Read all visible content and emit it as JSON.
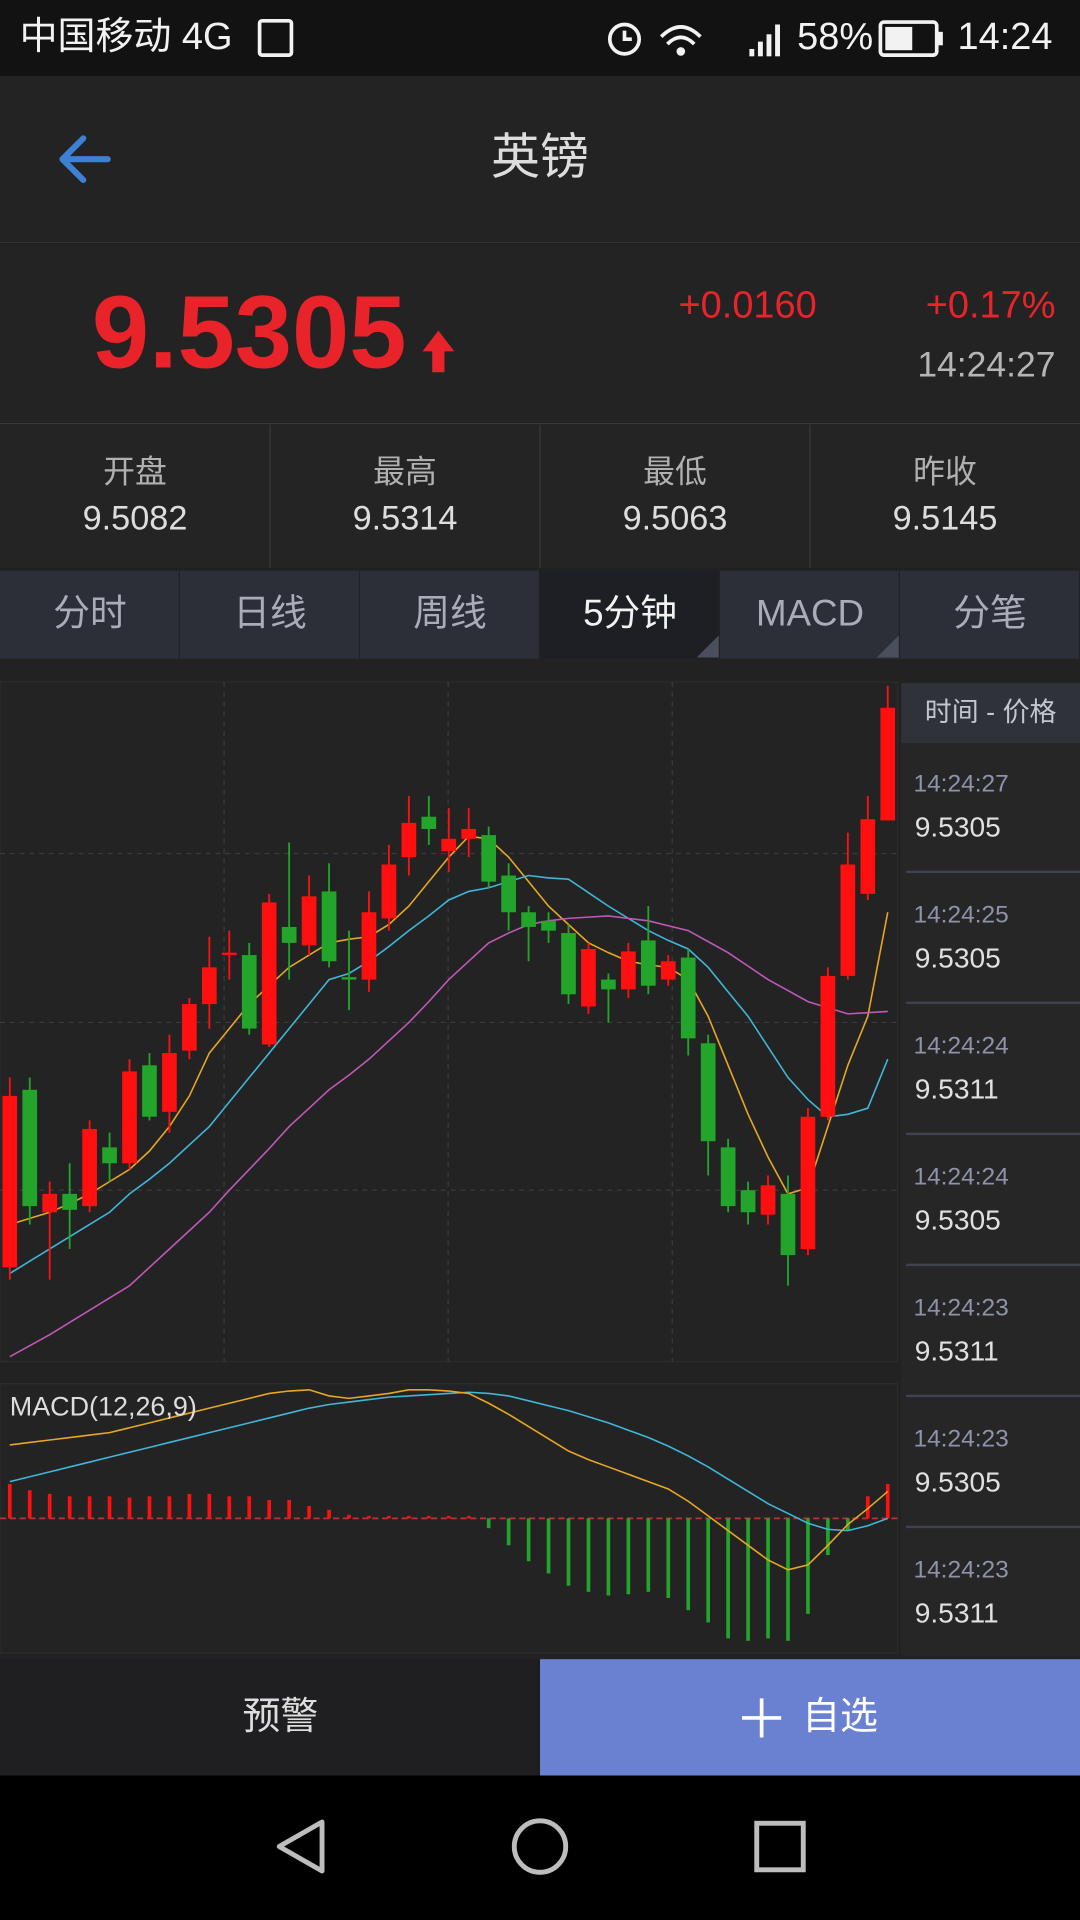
{
  "status_bar": {
    "carrier": "中国移动 4G",
    "battery": "58%",
    "time": "14:24"
  },
  "header": {
    "title": "英镑"
  },
  "quote": {
    "price": "9.5305",
    "change": "+0.0160",
    "change_pct": "+0.17%",
    "time": "14:24:27"
  },
  "stats": [
    {
      "label": "开盘",
      "value": "9.5082"
    },
    {
      "label": "最高",
      "value": "9.5314"
    },
    {
      "label": "最低",
      "value": "9.5063"
    },
    {
      "label": "昨收",
      "value": "9.5145"
    }
  ],
  "tabs": {
    "items": [
      "分时",
      "日线",
      "周线",
      "5分钟",
      "MACD",
      "分笔"
    ],
    "active": 3
  },
  "ticks": {
    "header": "时间 - 价格",
    "rows": [
      {
        "time": "14:24:27",
        "price": "9.5305"
      },
      {
        "time": "14:24:25",
        "price": "9.5305"
      },
      {
        "time": "14:24:24",
        "price": "9.5311"
      },
      {
        "time": "14:24:24",
        "price": "9.5305"
      },
      {
        "time": "14:24:23",
        "price": "9.5311"
      },
      {
        "time": "14:24:23",
        "price": "9.5305"
      },
      {
        "time": "14:24:23",
        "price": "9.5311"
      }
    ]
  },
  "chart_data": [
    {
      "type": "candlestick",
      "up_color": "#ff1010",
      "down_color": "#22a52a",
      "grid": true,
      "open": [
        9.52965,
        9.5311,
        9.5301,
        9.53025,
        9.53015,
        9.53063,
        9.5305,
        9.5313,
        9.53092,
        9.53142,
        9.5318,
        9.5322,
        9.5322,
        9.53147,
        9.53243,
        9.53228,
        9.53272,
        9.53202,
        9.532,
        9.5325,
        9.533,
        9.53333,
        9.53305,
        9.53315,
        9.53318,
        9.53285,
        9.53255,
        9.53248,
        9.53238,
        9.53178,
        9.532,
        9.53192,
        9.53232,
        9.532,
        9.53218,
        9.53148,
        9.53063,
        9.53028,
        9.53008,
        9.53025,
        9.5298,
        9.53088,
        9.53203,
        9.5327,
        9.5333
      ],
      "high": [
        9.5312,
        9.5312,
        9.53035,
        9.5305,
        9.53085,
        9.53075,
        9.53135,
        9.5314,
        9.53155,
        9.53185,
        9.53235,
        9.5324,
        9.5323,
        9.5327,
        9.53312,
        9.53285,
        9.53295,
        9.5324,
        9.53272,
        9.5331,
        9.5335,
        9.5335,
        9.5334,
        9.5334,
        9.53325,
        9.53295,
        9.5326,
        9.53255,
        9.53245,
        9.5323,
        9.53205,
        9.5323,
        9.5326,
        9.5322,
        9.53225,
        9.53155,
        9.5307,
        9.53035,
        9.5304,
        9.5304,
        9.53095,
        9.5321,
        9.5332,
        9.5335,
        9.5344
      ],
      "low": [
        9.52955,
        9.53,
        9.52955,
        9.5298,
        9.5301,
        9.53035,
        9.53045,
        9.53085,
        9.53075,
        9.53135,
        9.5316,
        9.532,
        9.53155,
        9.53145,
        9.532,
        9.5322,
        9.5321,
        9.53175,
        9.5319,
        9.5324,
        9.53285,
        9.5331,
        9.53288,
        9.533,
        9.53275,
        9.5324,
        9.53215,
        9.5323,
        9.5318,
        9.53172,
        9.53165,
        9.53185,
        9.53188,
        9.53195,
        9.53138,
        9.5304,
        9.5301,
        9.53,
        9.53,
        9.5295,
        9.52975,
        9.53085,
        9.532,
        9.53265,
        9.5333
      ],
      "close": [
        9.53105,
        9.53015,
        9.53025,
        9.53012,
        9.53078,
        9.5305,
        9.53125,
        9.53088,
        9.5314,
        9.5318,
        9.5321,
        9.53222,
        9.5316,
        9.53263,
        9.5323,
        9.53268,
        9.53215,
        9.532,
        9.53255,
        9.53294,
        9.53328,
        9.53323,
        9.53315,
        9.53323,
        9.5328,
        9.53255,
        9.53243,
        9.5324,
        9.53188,
        9.53225,
        9.53192,
        9.53223,
        9.53195,
        9.53215,
        9.53152,
        9.53068,
        9.53015,
        9.5301,
        9.53032,
        9.52975,
        9.53088,
        9.53203,
        9.53294,
        9.53331,
        9.53422
      ],
      "series": [
        {
          "color": "#e6a822",
          "values": [
            9.53,
            9.53005,
            9.5301,
            9.53017,
            9.53025,
            9.53035,
            9.53045,
            9.5306,
            9.5308,
            9.53105,
            9.5314,
            9.5316,
            9.5318,
            9.53195,
            9.5321,
            9.5322,
            9.5323,
            9.53233,
            9.53235,
            9.53245,
            9.5326,
            9.5328,
            9.533,
            9.53317,
            9.53315,
            9.533,
            9.5328,
            9.5326,
            9.53245,
            9.5323,
            9.53222,
            9.53215,
            9.53212,
            9.5321,
            9.532,
            9.5317,
            9.5313,
            9.5309,
            9.53055,
            9.53025,
            9.5303,
            9.5308,
            9.5313,
            9.5317,
            9.53255
          ]
        },
        {
          "color": "#3fb6d8",
          "values": [
            9.5296,
            9.5297,
            9.5298,
            9.5299,
            9.53,
            9.5301,
            9.53025,
            9.53037,
            9.5305,
            9.53065,
            9.5308,
            9.531,
            9.5312,
            9.5314,
            9.5316,
            9.5318,
            9.532,
            9.53205,
            9.53215,
            9.53227,
            9.5324,
            9.53252,
            9.53265,
            9.53272,
            9.53275,
            9.5328,
            9.53285,
            9.53283,
            9.53282,
            9.53271,
            9.5326,
            9.5325,
            9.5324,
            9.53232,
            9.53225,
            9.5321,
            9.5319,
            9.5317,
            9.53145,
            9.5312,
            9.53102,
            9.53088,
            9.5309,
            9.53095,
            9.53135
          ]
        },
        {
          "color": "#c058b8",
          "values": [
            9.52892,
            9.52901,
            9.5291,
            9.5292,
            9.5293,
            9.5294,
            9.5295,
            9.52965,
            9.5298,
            9.52995,
            9.5301,
            9.53028,
            9.53045,
            9.53062,
            9.5308,
            9.53095,
            9.5311,
            9.53122,
            9.53135,
            9.5315,
            9.53165,
            9.53182,
            9.532,
            9.53215,
            9.5323,
            9.53238,
            9.53245,
            9.53248,
            9.5325,
            9.53251,
            9.53252,
            9.5325,
            9.53248,
            9.53244,
            9.5324,
            9.53231,
            9.53222,
            9.53211,
            9.532,
            9.53191,
            9.53182,
            9.53177,
            9.53172,
            9.53173,
            9.53174
          ]
        }
      ]
    },
    {
      "type": "macd",
      "title": "MACD(12,26,9)",
      "up_color": "#ff1010",
      "down_color": "#22a52a",
      "series": [
        {
          "color": "#3fb6d8",
          "values": [
            0.0003,
            0.00034,
            0.00038,
            0.00042,
            0.00046,
            0.0005,
            0.00054,
            0.00058,
            0.00062,
            0.00066,
            0.0007,
            0.00074,
            0.00078,
            0.00082,
            0.00086,
            0.0009,
            0.00093,
            0.00095,
            0.00097,
            0.00099,
            0.001,
            0.00101,
            0.00102,
            0.00103,
            0.00102,
            0.001,
            0.00096,
            0.00092,
            0.00088,
            0.00083,
            0.00078,
            0.00072,
            0.00066,
            0.00059,
            0.00051,
            0.00042,
            0.00032,
            0.00022,
            0.00012,
            4e-05,
            -4e-05,
            -9e-05,
            -0.0001,
            -6e-05,
            0
          ]
        },
        {
          "color": "#e6a822",
          "values": [
            0.0006,
            0.00062,
            0.00064,
            0.00066,
            0.00068,
            0.0007,
            0.00074,
            0.00078,
            0.00082,
            0.00086,
            0.0009,
            0.00094,
            0.00098,
            0.00102,
            0.00104,
            0.00105,
            0.001,
            0.00098,
            0.001,
            0.00102,
            0.00105,
            0.00105,
            0.00104,
            0.00102,
            0.00094,
            0.00085,
            0.00075,
            0.00065,
            0.00055,
            0.00048,
            0.00042,
            0.00036,
            0.0003,
            0.00024,
            0.00014,
            2e-05,
            -0.0001,
            -0.00022,
            -0.00034,
            -0.00042,
            -0.00038,
            -0.00022,
            -5e-05,
            8e-05,
            0.00022
          ]
        }
      ],
      "values": [
        0.00028,
        0.00023,
        0.0002,
        0.00018,
        0.00018,
        0.00018,
        0.00017,
        0.00018,
        0.00018,
        0.0002,
        0.0002,
        0.00018,
        0.00018,
        0.00015,
        0.00015,
        0.0001,
        7e-05,
        3e-05,
        2e-05,
        2e-05,
        2e-05,
        2e-05,
        2e-05,
        2e-05,
        -8e-05,
        -0.00022,
        -0.00035,
        -0.00045,
        -0.00055,
        -0.0006,
        -0.00063,
        -0.00062,
        -0.0006,
        -0.00065,
        -0.00075,
        -0.00085,
        -0.00098,
        -0.001,
        -0.00098,
        -0.001,
        -0.00078,
        -0.0003,
        -0.0001,
        0.00018,
        0.00028
      ]
    }
  ],
  "actions": {
    "alert": "预警",
    "watch": "自选"
  }
}
